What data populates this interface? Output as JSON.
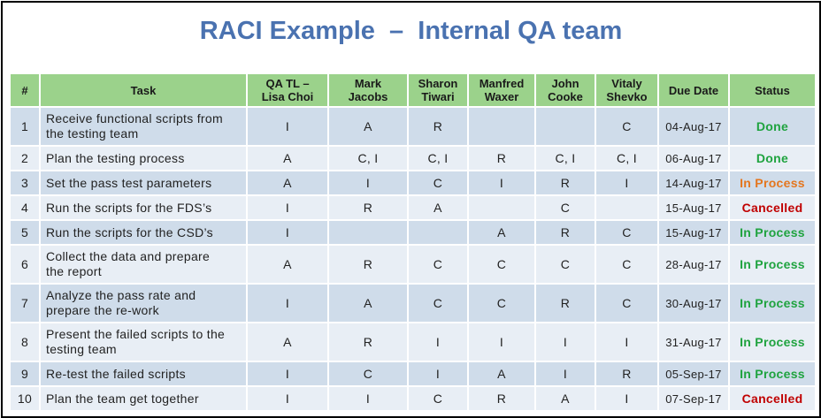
{
  "title": "RACI Example  –  Internal QA team",
  "colors": {
    "title": "#4a72b0",
    "header_bg": "#9bd28b",
    "row_odd": "#cfdcea",
    "row_even": "#e8eef5",
    "status_done": "#1fa33f",
    "status_in_process_green": "#1fa33f",
    "status_in_process_orange": "#e4761e",
    "status_cancelled": "#c00000"
  },
  "table": {
    "headers": {
      "num": "#",
      "task": "Task",
      "p1": [
        "QA TL –",
        "Lisa Choi"
      ],
      "p2": [
        "Mark",
        "Jacobs"
      ],
      "p3": [
        "Sharon",
        "Tiwari"
      ],
      "p4": [
        "Manfred",
        "Waxer"
      ],
      "p5": [
        "John",
        "Cooke"
      ],
      "p6": [
        "Vitaly",
        "Shevko"
      ],
      "due": "Due Date",
      "status": "Status"
    },
    "rows": [
      {
        "num": "1",
        "task": [
          "Receive functional scripts from",
          "the testing team"
        ],
        "r": [
          "I",
          "A",
          "R",
          "",
          "",
          "C"
        ],
        "due": "04-Aug-17",
        "status": "Done",
        "status_color": "#1fa33f"
      },
      {
        "num": "2",
        "task": [
          "Plan the testing process"
        ],
        "r": [
          "A",
          "C, I",
          "C, I",
          "R",
          "C, I",
          "C, I"
        ],
        "due": "06-Aug-17",
        "status": "Done",
        "status_color": "#1fa33f"
      },
      {
        "num": "3",
        "task": [
          "Set the pass test parameters"
        ],
        "r": [
          "A",
          "I",
          "C",
          "I",
          "R",
          "I"
        ],
        "due": "14-Aug-17",
        "status": "In Process",
        "status_color": "#e4761e"
      },
      {
        "num": "4",
        "task": [
          "Run the scripts for the FDS’s"
        ],
        "r": [
          "I",
          "R",
          "A",
          "",
          "C",
          ""
        ],
        "due": "15-Aug-17",
        "status": "Cancelled",
        "status_color": "#c00000"
      },
      {
        "num": "5",
        "task": [
          "Run the scripts for the CSD’s"
        ],
        "r": [
          "I",
          "",
          "",
          "A",
          "R",
          "C"
        ],
        "due": "15-Aug-17",
        "status": "In Process",
        "status_color": "#1fa33f"
      },
      {
        "num": "6",
        "task": [
          "Collect  the data and prepare",
          "the report"
        ],
        "r": [
          "A",
          "R",
          "C",
          "C",
          "C",
          "C"
        ],
        "due": "28-Aug-17",
        "status": "In Process",
        "status_color": "#1fa33f"
      },
      {
        "num": "7",
        "task": [
          "Analyze  the pass rate and",
          "prepare  the re-work"
        ],
        "r": [
          "I",
          "A",
          "C",
          "C",
          "R",
          "C"
        ],
        "due": "30-Aug-17",
        "status": "In Process",
        "status_color": "#1fa33f"
      },
      {
        "num": "8",
        "task": [
          "Present the failed scripts to the",
          "testing team"
        ],
        "r": [
          "A",
          "R",
          "I",
          "I",
          "I",
          "I"
        ],
        "due": "31-Aug-17",
        "status": "In Process",
        "status_color": "#1fa33f"
      },
      {
        "num": "9",
        "task": [
          "Re-test the failed scripts"
        ],
        "r": [
          "I",
          "C",
          "I",
          "A",
          "I",
          "R"
        ],
        "due": "05-Sep-17",
        "status": "In Process",
        "status_color": "#1fa33f"
      },
      {
        "num": "10",
        "task": [
          "Plan the team get together"
        ],
        "r": [
          "I",
          "I",
          "C",
          "R",
          "A",
          "I"
        ],
        "due": "07-Sep-17",
        "status": "Cancelled",
        "status_color": "#c00000"
      }
    ]
  }
}
